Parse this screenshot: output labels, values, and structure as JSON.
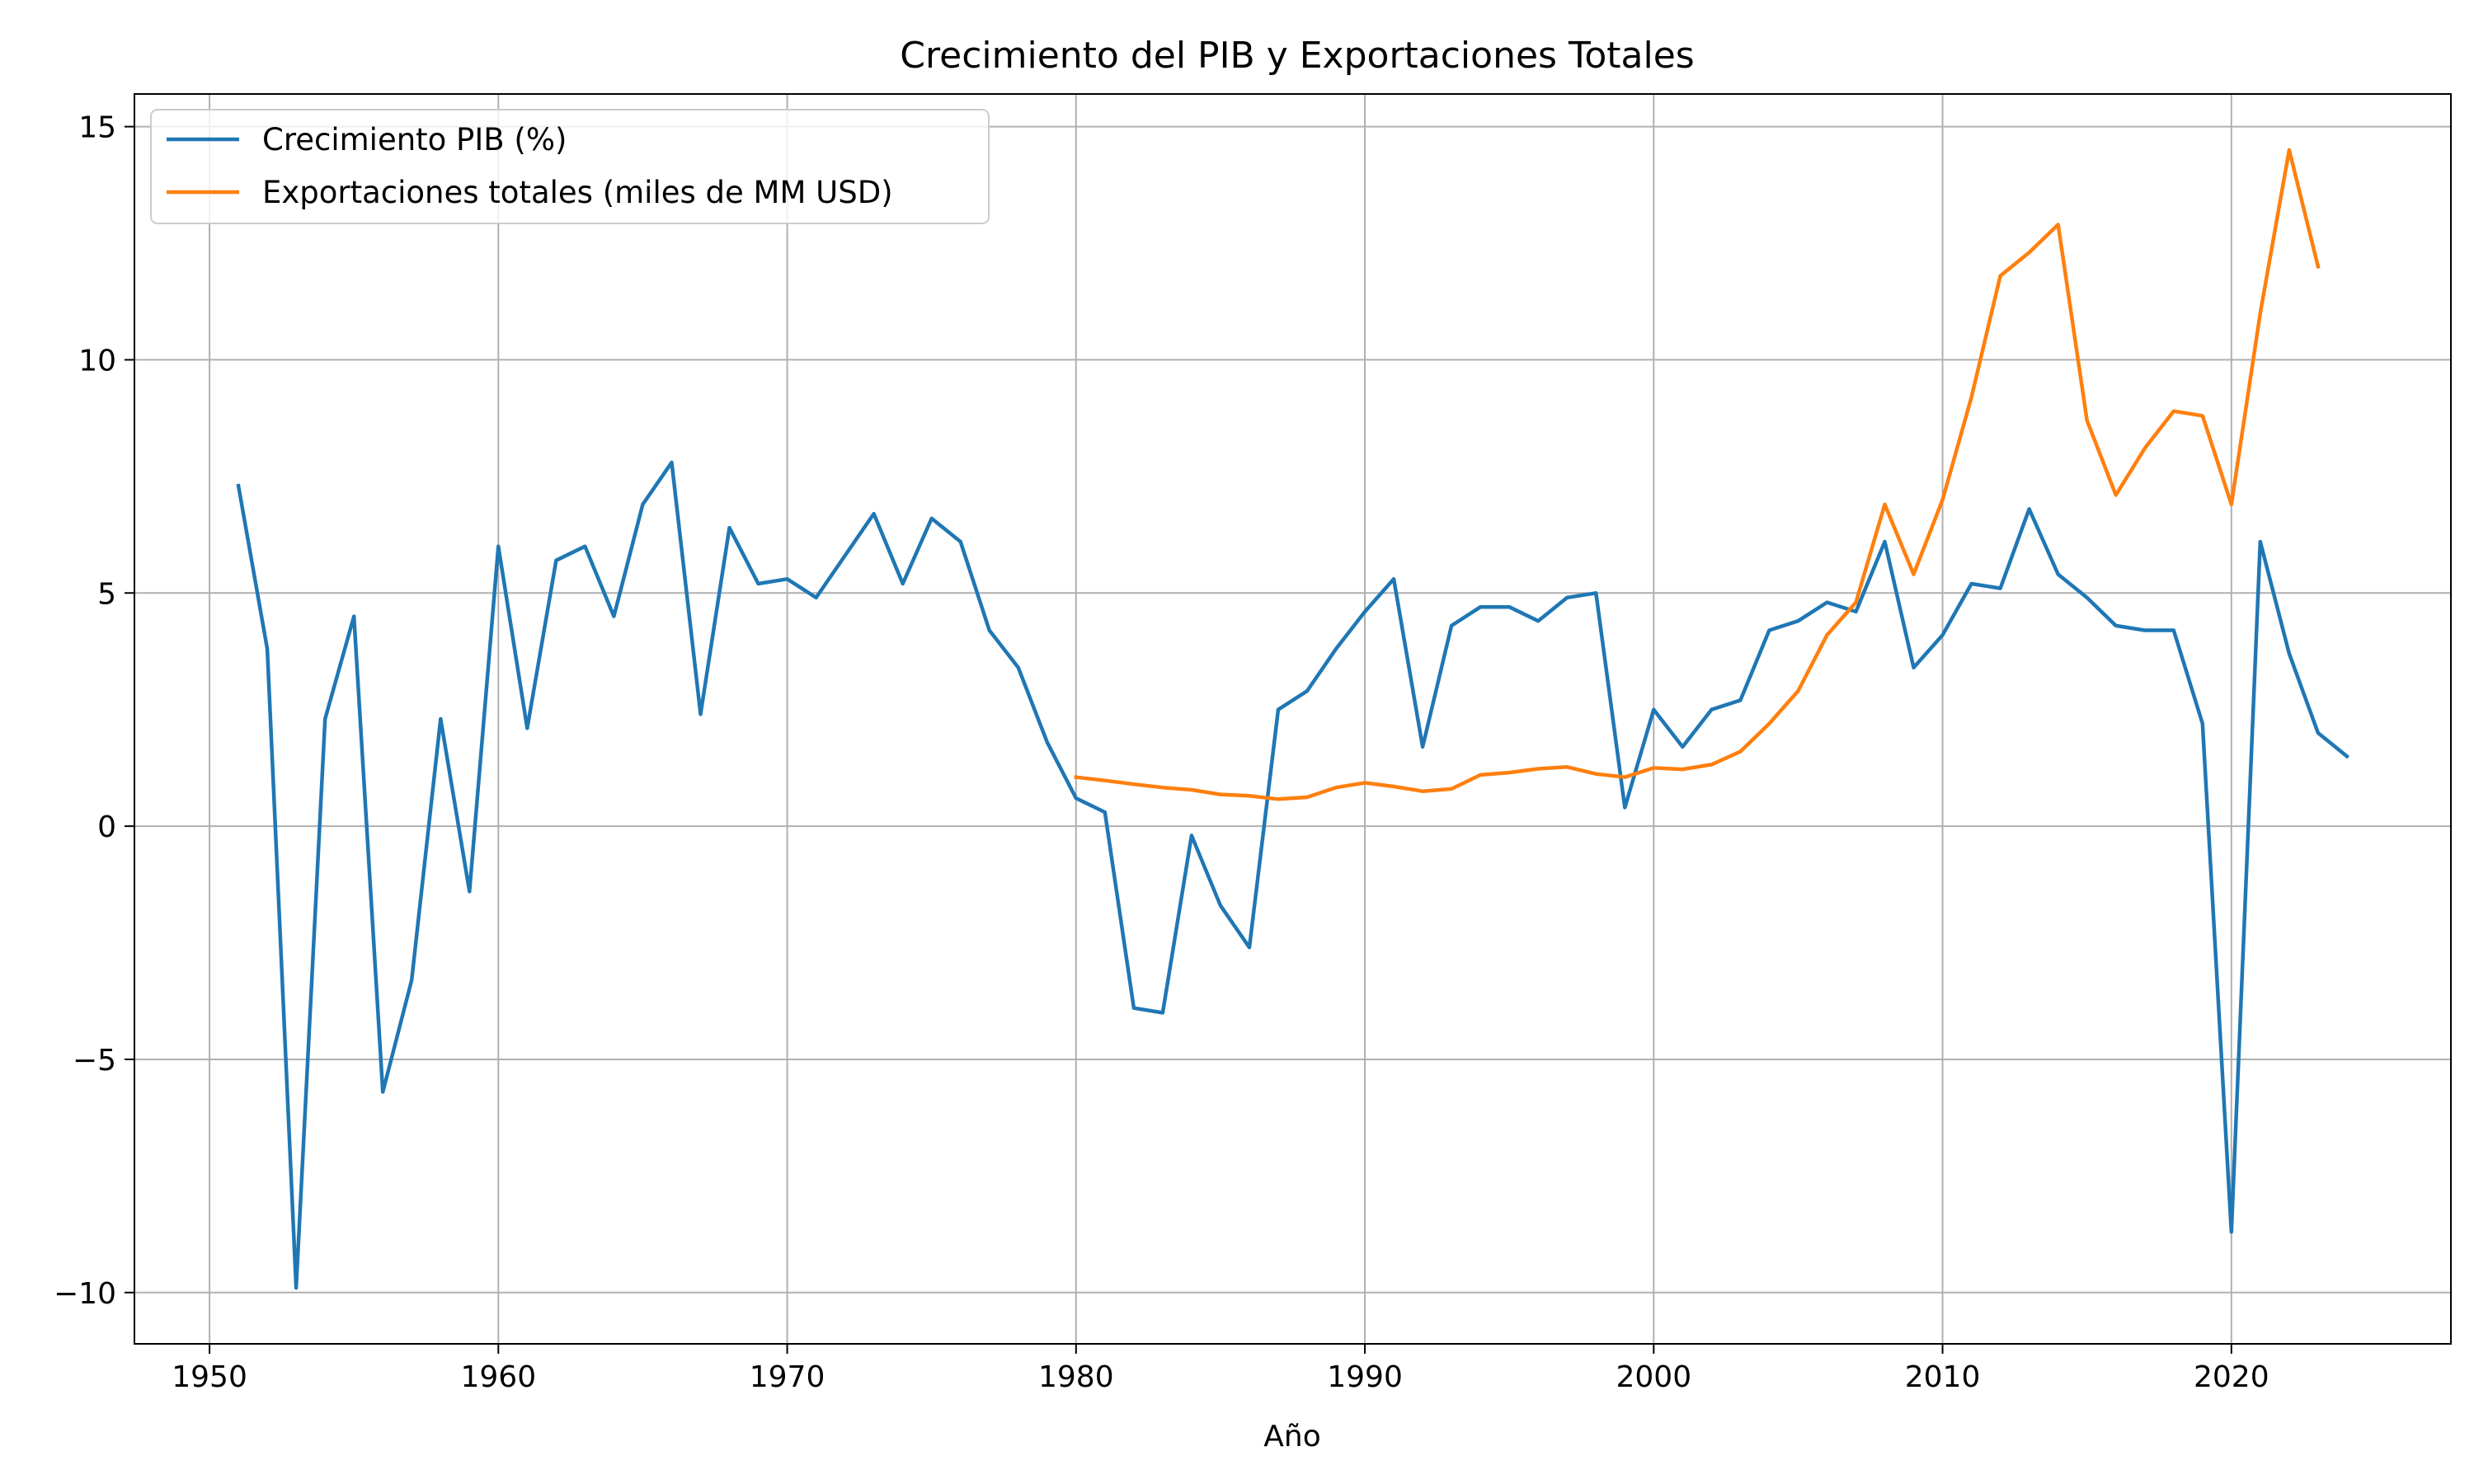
{
  "chart_data": {
    "type": "line",
    "title": "Crecimiento del PIB y Exportaciones Totales",
    "xlabel": "Año",
    "ylabel": "",
    "xlim": [
      1947.4,
      2027.6
    ],
    "ylim": [
      -11.1,
      15.7
    ],
    "xticks": [
      1950,
      1960,
      1970,
      1980,
      1990,
      2000,
      2010,
      2020
    ],
    "yticks": [
      -10,
      -5,
      0,
      5,
      10,
      15
    ],
    "ytick_labels": [
      "−10",
      "−5",
      "0",
      "5",
      "10",
      "15"
    ],
    "grid": true,
    "legend_position": "upper-left",
    "series": [
      {
        "name": "Crecimiento PIB (%)",
        "color": "#1f77b4",
        "x": [
          1951,
          1952,
          1953,
          1954,
          1955,
          1956,
          1957,
          1958,
          1959,
          1960,
          1961,
          1962,
          1963,
          1964,
          1965,
          1966,
          1967,
          1968,
          1969,
          1970,
          1971,
          1972,
          1973,
          1974,
          1975,
          1976,
          1977,
          1978,
          1979,
          1980,
          1981,
          1982,
          1983,
          1984,
          1985,
          1986,
          1987,
          1988,
          1989,
          1990,
          1991,
          1992,
          1993,
          1994,
          1995,
          1996,
          1997,
          1998,
          1999,
          2000,
          2001,
          2002,
          2003,
          2004,
          2005,
          2006,
          2007,
          2008,
          2009,
          2010,
          2011,
          2012,
          2013,
          2014,
          2015,
          2016,
          2017,
          2018,
          2019,
          2020,
          2021,
          2022,
          2023,
          2024
        ],
        "y": [
          7.3,
          3.8,
          -9.9,
          2.3,
          4.5,
          -5.7,
          -3.3,
          2.3,
          -1.4,
          6.0,
          2.1,
          5.7,
          6.0,
          4.5,
          6.9,
          7.8,
          2.4,
          6.4,
          5.2,
          5.3,
          4.9,
          5.8,
          6.7,
          5.2,
          6.6,
          6.1,
          4.2,
          3.4,
          1.8,
          0.6,
          0.3,
          -3.9,
          -4.0,
          -0.2,
          -1.7,
          -2.6,
          2.5,
          2.9,
          3.8,
          4.6,
          5.3,
          1.7,
          4.3,
          4.7,
          4.7,
          4.4,
          4.9,
          5.0,
          0.4,
          2.5,
          1.7,
          2.5,
          2.7,
          4.2,
          4.4,
          4.8,
          4.6,
          6.1,
          3.4,
          4.1,
          5.2,
          5.1,
          6.8,
          5.4,
          4.9,
          4.3,
          4.2,
          4.2,
          2.2,
          -8.7,
          6.1,
          3.7,
          2.0,
          1.5
        ]
      },
      {
        "name": "Exportaciones totales (miles de MM USD)",
        "color": "#ff7f0e",
        "x": [
          1980,
          1981,
          1982,
          1983,
          1984,
          1985,
          1986,
          1987,
          1988,
          1989,
          1990,
          1991,
          1992,
          1993,
          1994,
          1995,
          1996,
          1997,
          1998,
          1999,
          2000,
          2001,
          2002,
          2003,
          2004,
          2005,
          2006,
          2007,
          2008,
          2009,
          2010,
          2011,
          2012,
          2013,
          2014,
          2015,
          2016,
          2017,
          2018,
          2019,
          2020,
          2021,
          2022,
          2023
        ],
        "y": [
          1.05,
          0.98,
          0.9,
          0.83,
          0.78,
          0.68,
          0.65,
          0.58,
          0.62,
          0.83,
          0.93,
          0.85,
          0.75,
          0.8,
          1.1,
          1.15,
          1.23,
          1.27,
          1.12,
          1.05,
          1.25,
          1.22,
          1.32,
          1.6,
          2.2,
          2.9,
          4.1,
          4.8,
          6.9,
          5.4,
          7.0,
          9.2,
          11.8,
          12.3,
          12.9,
          8.7,
          7.1,
          8.1,
          8.9,
          8.8,
          6.9,
          11.0,
          14.5,
          12.0
        ]
      }
    ]
  }
}
